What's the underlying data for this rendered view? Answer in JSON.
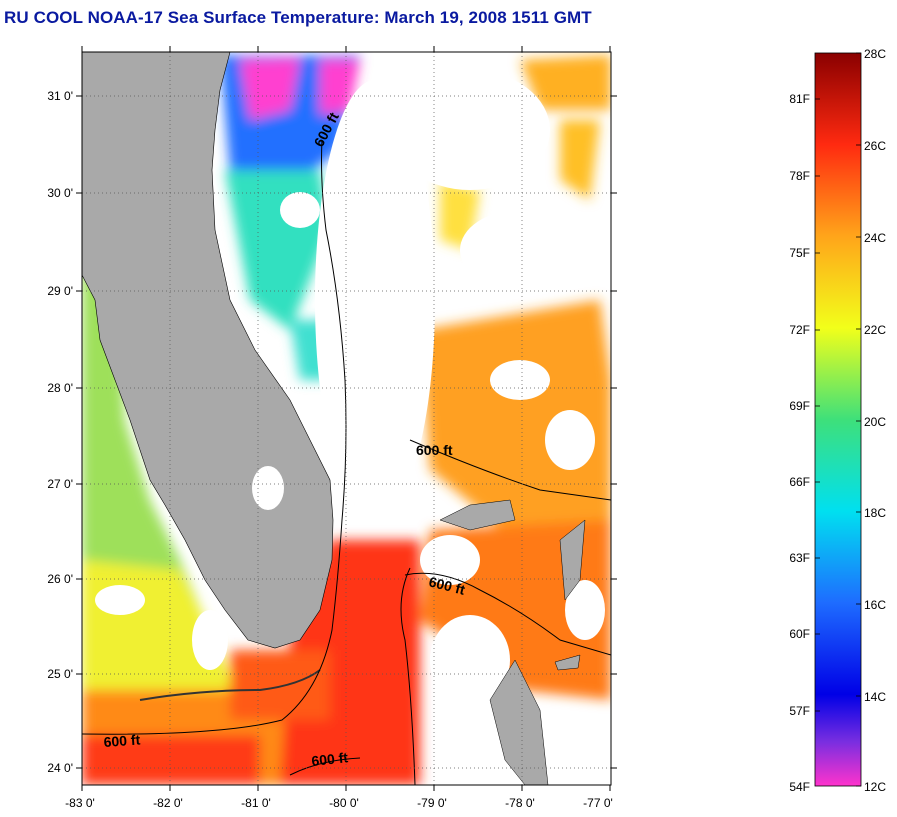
{
  "title": "RU COOL  NOAA-17  Sea Surface Temperature:  March 19, 2008 1511 GMT",
  "map": {
    "lat_ticks": [
      "31 0'",
      "30 0'",
      "29 0'",
      "28 0'",
      "27 0'",
      "26 0'",
      "25 0'",
      "24 0'"
    ],
    "lon_ticks": [
      "-83 0'",
      "-82 0'",
      "-81 0'",
      "-80 0'",
      "-79 0'",
      "-78 0'",
      "-77 0'"
    ],
    "contour_label": "600 ft",
    "colors": {
      "land": "#a9a9a9",
      "cloud": "#ffffff",
      "grid": "#555555"
    }
  },
  "colorbar": {
    "fahrenheit_labels": [
      "81F",
      "78F",
      "75F",
      "72F",
      "69F",
      "66F",
      "63F",
      "60F",
      "57F",
      "54F"
    ],
    "celsius_labels": [
      "28C",
      "26C",
      "24C",
      "22C",
      "20C",
      "18C",
      "16C",
      "14C",
      "12C"
    ],
    "stops": [
      {
        "c": 12,
        "color": "#ff33cc"
      },
      {
        "c": 13.2,
        "color": "#7a2ee0"
      },
      {
        "c": 14,
        "color": "#0000e6"
      },
      {
        "c": 16,
        "color": "#1e6cff"
      },
      {
        "c": 18,
        "color": "#00e0f0"
      },
      {
        "c": 20,
        "color": "#3ee07a"
      },
      {
        "c": 22,
        "color": "#f2ff1a"
      },
      {
        "c": 24,
        "color": "#ffa51a"
      },
      {
        "c": 26,
        "color": "#ff2a10"
      },
      {
        "c": 28,
        "color": "#8a0000"
      }
    ]
  }
}
